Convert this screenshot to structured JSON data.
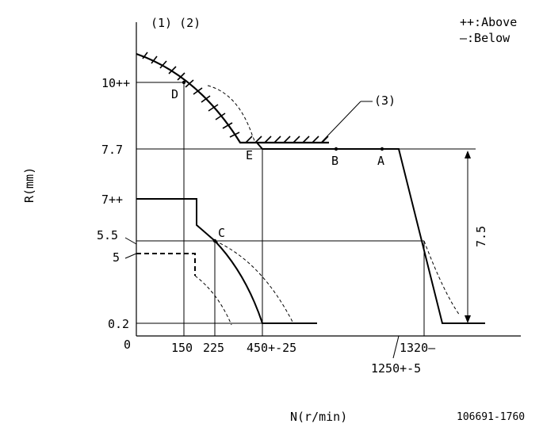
{
  "labels": {
    "circled_refs": "(1) (2)",
    "ref3": "(3)",
    "legend_above": "++:Above",
    "legend_below": "—:Below",
    "y_axis": "R(mm)",
    "x_axis": "N(r/min)",
    "drawing_no": "106691-1760"
  },
  "y_ticks": [
    "10++",
    "7.7",
    "7++",
    "5.5",
    "5",
    "0.2",
    "0"
  ],
  "x_ticks": [
    "150",
    "225",
    "450+-25",
    "1320—",
    "1250+-5"
  ],
  "points": [
    "D",
    "E",
    "B",
    "A",
    "C"
  ],
  "dimension": "7.5"
}
